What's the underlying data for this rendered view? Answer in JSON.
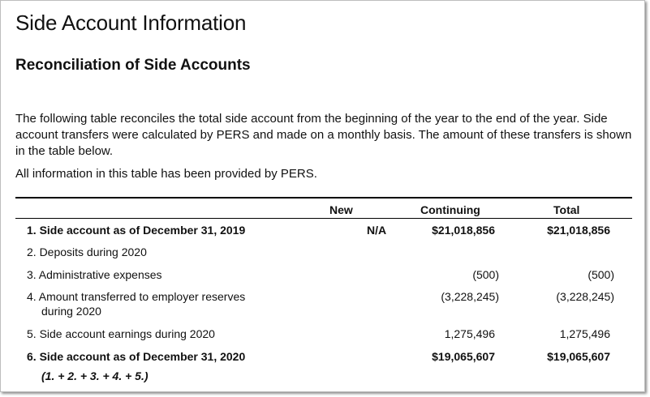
{
  "title": "Side Account Information",
  "subtitle": "Reconciliation of Side Accounts",
  "paragraph": "The following table reconciles the total side account from the beginning of the year to the end of the year. Side account transfers were calculated by PERS and made on a monthly basis. The amount of these transfers is shown in the table below.",
  "note": "All information in this table has been provided by PERS.",
  "table": {
    "headers": {
      "new": "New",
      "continuing": "Continuing",
      "total": "Total"
    },
    "rows": [
      {
        "label": "1. Side account as of December 31, 2019",
        "new": "N/A",
        "continuing": "$21,018,856",
        "total": "$21,018,856"
      },
      {
        "label": "2. Deposits during 2020",
        "new": "",
        "continuing": "",
        "total": ""
      },
      {
        "label": "3. Administrative expenses",
        "new": "",
        "continuing": "(500)",
        "total": "(500)"
      },
      {
        "label_line1": "4. Amount transferred to employer reserves",
        "label_line2": "during 2020",
        "new": "",
        "continuing": "(3,228,245)",
        "total": "(3,228,245)"
      },
      {
        "label": "5. Side account earnings during 2020",
        "new": "",
        "continuing": "1,275,496",
        "total": "1,275,496"
      },
      {
        "label": "6. Side account as of December 31, 2020",
        "sublabel": "(1. + 2. + 3. + 4. + 5.)",
        "new": "",
        "continuing": "$19,065,607",
        "total": "$19,065,607"
      }
    ]
  }
}
